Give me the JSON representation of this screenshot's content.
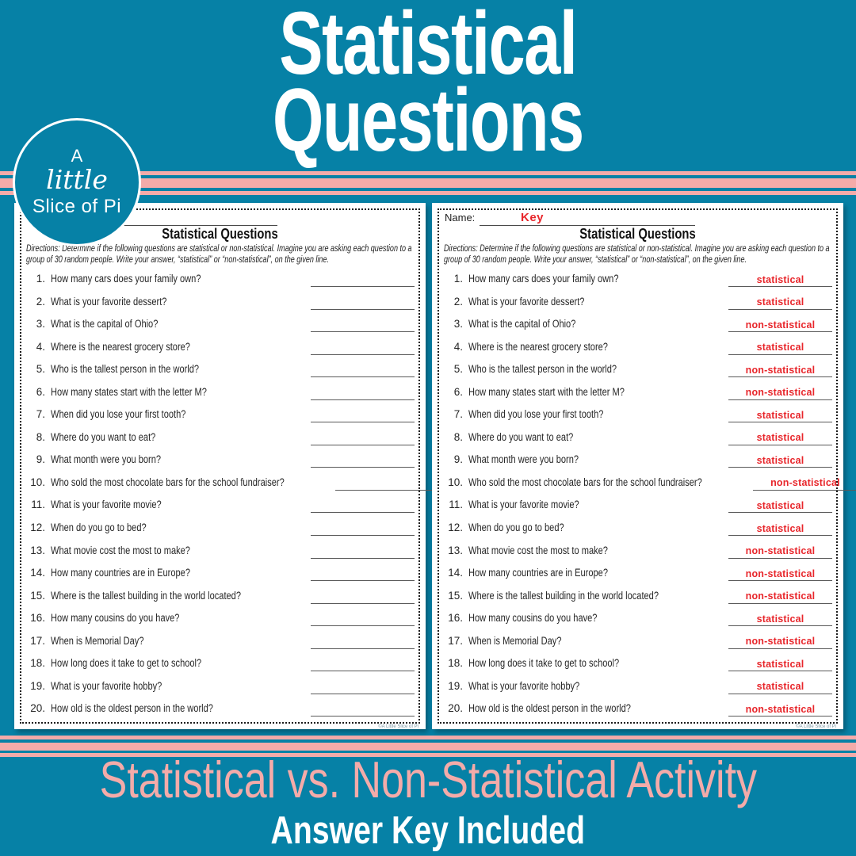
{
  "hero": {
    "title_line1": "Statistical",
    "title_line2": "Questions"
  },
  "logo": {
    "line1": "A",
    "line2": "little",
    "line3": "Slice of Pi"
  },
  "worksheet": {
    "name_label": "Name:",
    "title": "Statistical Questions",
    "directions": "Directions: Determine if the following questions are statistical or non-statistical.  Imagine you are asking each question to a group of 30 random people.  Write your answer, “statistical” or “non-statistical”, on the given line.",
    "questions": [
      "How many cars does your family own?",
      "What is your favorite dessert?",
      "What is the capital of Ohio?",
      "Where is the nearest grocery store?",
      "Who is the tallest person in the world?",
      "How many states start with the letter M?",
      "When did you lose your first tooth?",
      "Where do you want to eat?",
      "What month were you born?",
      "Who sold the most chocolate bars for the school fundraiser?",
      "What is your favorite movie?",
      "When do you go to bed?",
      "What movie cost the most to make?",
      "How many countries are in Europe?",
      "Where is the tallest building in the world located?",
      "How many cousins do you have?",
      "When is Memorial Day?",
      "How long does it take to get to school?",
      "What is your favorite hobby?",
      "How old is the oldest person in the world?"
    ],
    "credit": "©A Little Slice of Pi"
  },
  "answer_key": {
    "name_value": "Key",
    "answers": [
      "statistical",
      "statistical",
      "non-statistical",
      "statistical",
      "non-statistical",
      "non-statistical",
      "statistical",
      "statistical",
      "statistical",
      "non-statistical",
      "statistical",
      "statistical",
      "non-statistical",
      "non-statistical",
      "non-statistical",
      "statistical",
      "non-statistical",
      "statistical",
      "statistical",
      "non-statistical"
    ]
  },
  "footer": {
    "subtitle": "Statistical vs. Non-Statistical Activity",
    "note": "Answer Key Included"
  },
  "colors": {
    "teal": "#0681A6",
    "pink": "#F4ABA9",
    "red": "#E8262B",
    "ink": "#262626"
  }
}
